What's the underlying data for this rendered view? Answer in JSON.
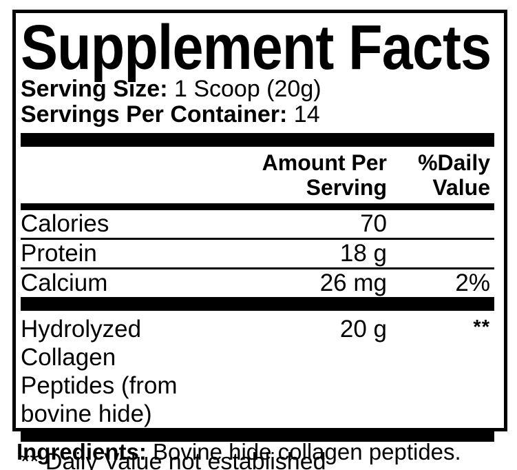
{
  "colors": {
    "ink": "#000000",
    "background": "#ffffff"
  },
  "facts": {
    "title": "Supplement Facts",
    "serving_size": {
      "label": "Serving Size:",
      "value": "1 Scoop (20g)"
    },
    "servings_per_container": {
      "label": "Servings Per Container:",
      "value": "14"
    },
    "columns": {
      "amount_header": "Amount Per\nServing",
      "daily_value_header": "%Daily\nValue"
    },
    "rows": [
      {
        "name": "Calories",
        "amount": "70",
        "daily_value": ""
      },
      {
        "name": "Protein",
        "amount": "18 g",
        "daily_value": ""
      },
      {
        "name": "Calcium",
        "amount": "26 mg",
        "daily_value": "2%"
      }
    ],
    "collagen_row": {
      "name_line1": "Hydrolyzed Collagen",
      "name_line2": "Peptides (from bovine hide)",
      "amount": "20 g",
      "daily_value": "**"
    },
    "footnote": "** Daily Value not established"
  },
  "ingredients": {
    "label": "Ingredients:",
    "value": "Bovine hide collagen peptides."
  }
}
